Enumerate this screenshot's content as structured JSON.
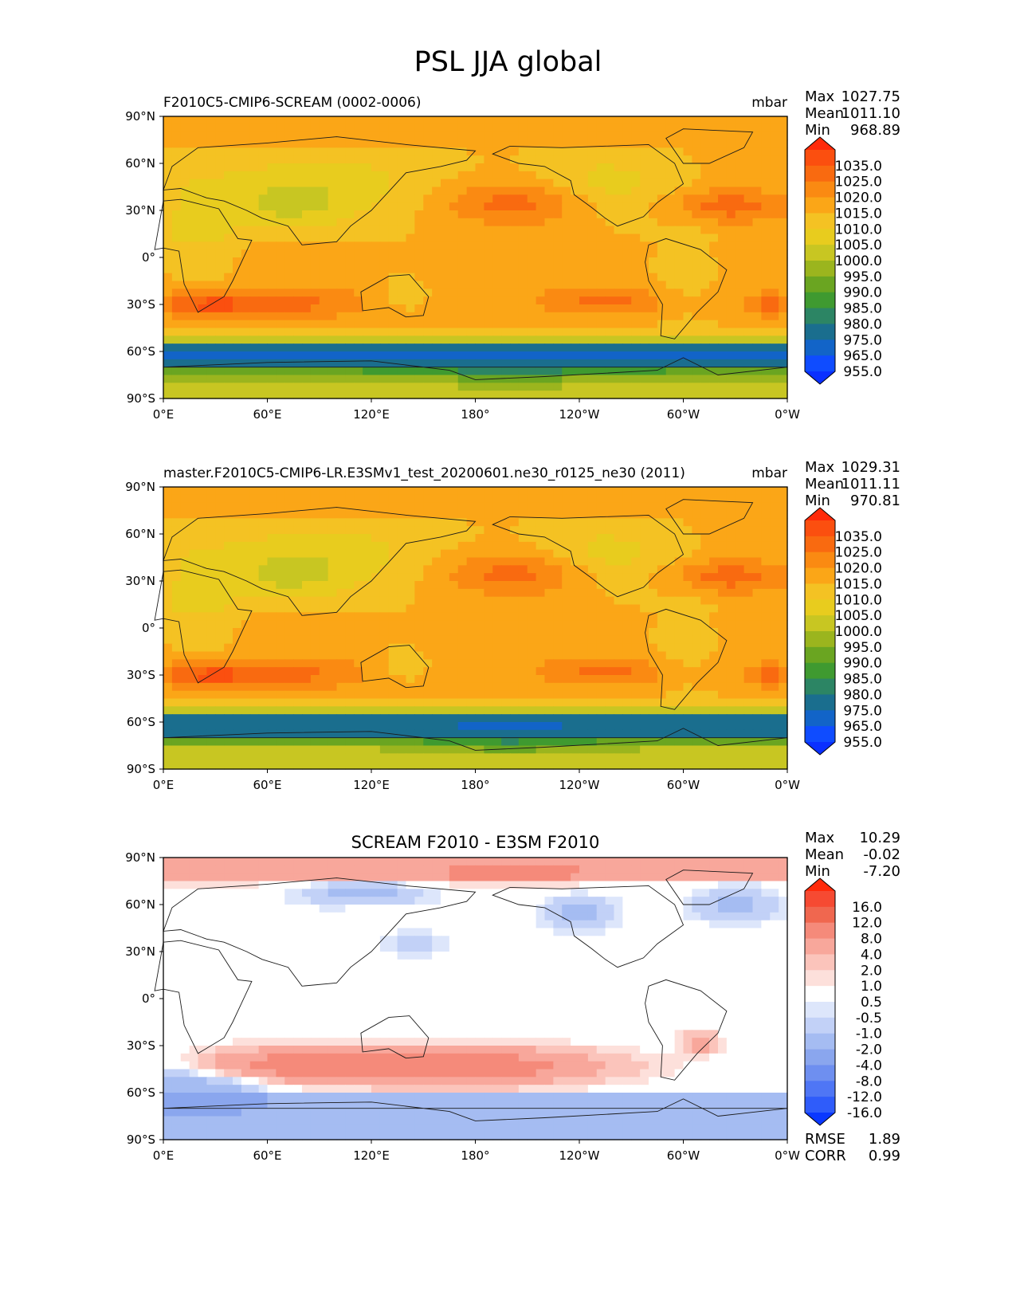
{
  "figure": {
    "title": "PSL JJA global"
  },
  "chart_data": [
    {
      "type": "heatmap",
      "title_left": "F2010C5-CMIP6-SCREAM (0002-0006)",
      "title_center": "",
      "units": "mbar",
      "stats": {
        "max_label": "Max",
        "max": "1027.75",
        "mean_label": "Mean",
        "mean": "1011.10",
        "min_label": "Min",
        "min": "968.89"
      },
      "x_ticks": [
        "0°E",
        "60°E",
        "120°E",
        "180°",
        "120°W",
        "60°W",
        "0°W"
      ],
      "y_ticks": [
        "90°N",
        "60°N",
        "30°N",
        "0°",
        "30°S",
        "60°S",
        "90°S"
      ],
      "colorbar": {
        "labels": [
          "1035.0",
          "1025.0",
          "1020.0",
          "1015.0",
          "1010.0",
          "1005.0",
          "1000.0",
          "995.0",
          "990.0",
          "985.0",
          "980.0",
          "975.0",
          "965.0",
          "955.0"
        ],
        "colors": [
          "#ff2a0a",
          "#fb4f0f",
          "#f96a10",
          "#fa8a12",
          "#fba617",
          "#f4c223",
          "#e8cc1e",
          "#c8c622",
          "#9bb51e",
          "#6aa521",
          "#3f9a30",
          "#2c8564",
          "#1a6e8e",
          "#1264c8",
          "#0f4cff",
          "#0a30ff"
        ]
      },
      "field": "model",
      "rmse_label": "",
      "rmse": "",
      "corr_label": "",
      "corr": ""
    },
    {
      "type": "heatmap",
      "title_left": "master.F2010C5-CMIP6-LR.E3SMv1_test_20200601.ne30_r0125_ne30 (2011)",
      "title_center": "",
      "units": "mbar",
      "stats": {
        "max_label": "Max",
        "max": "1029.31",
        "mean_label": "Mean",
        "mean": "1011.11",
        "min_label": "Min",
        "min": "970.81"
      },
      "x_ticks": [
        "0°E",
        "60°E",
        "120°E",
        "180°",
        "120°W",
        "60°W",
        "0°W"
      ],
      "y_ticks": [
        "90°N",
        "60°N",
        "30°N",
        "0°",
        "30°S",
        "60°S",
        "90°S"
      ],
      "colorbar": {
        "labels": [
          "1035.0",
          "1025.0",
          "1020.0",
          "1015.0",
          "1010.0",
          "1005.0",
          "1000.0",
          "995.0",
          "990.0",
          "985.0",
          "980.0",
          "975.0",
          "965.0",
          "955.0"
        ],
        "colors": [
          "#ff2a0a",
          "#fb4f0f",
          "#f96a10",
          "#fa8a12",
          "#fba617",
          "#f4c223",
          "#e8cc1e",
          "#c8c622",
          "#9bb51e",
          "#6aa521",
          "#3f9a30",
          "#2c8564",
          "#1a6e8e",
          "#1264c8",
          "#0f4cff",
          "#0a30ff"
        ]
      },
      "field": "reference",
      "rmse_label": "",
      "rmse": "",
      "corr_label": "",
      "corr": ""
    },
    {
      "type": "heatmap",
      "title_left": "",
      "title_center": "SCREAM F2010 - E3SM F2010",
      "units": "",
      "stats": {
        "max_label": "Max",
        "max": "10.29",
        "mean_label": "Mean",
        "mean": "-0.02",
        "min_label": "Min",
        "min": "-7.20"
      },
      "x_ticks": [
        "0°E",
        "60°E",
        "120°E",
        "180°",
        "120°W",
        "60°W",
        "0°W"
      ],
      "y_ticks": [
        "90°N",
        "60°N",
        "30°N",
        "0°",
        "30°S",
        "60°S",
        "90°S"
      ],
      "colorbar": {
        "labels": [
          "16.0",
          "12.0",
          "8.0",
          "4.0",
          "2.0",
          "1.0",
          "0.5",
          "-0.5",
          "-1.0",
          "-2.0",
          "-4.0",
          "-8.0",
          "-12.0",
          "-16.0"
        ],
        "colors": [
          "#ff2a0a",
          "#f64a32",
          "#f0674f",
          "#f58a7a",
          "#f8a79b",
          "#fbc4bb",
          "#fde0db",
          "#ffffff",
          "#dde6fb",
          "#c2d1f7",
          "#a5bcf2",
          "#8aa6ee",
          "#6e8ff0",
          "#4f76f5",
          "#2f5cfa",
          "#0a38ff"
        ]
      },
      "field": "diff",
      "rmse_label": "RMSE",
      "rmse": "1.89",
      "corr_label": "CORR",
      "corr": "0.99"
    }
  ]
}
